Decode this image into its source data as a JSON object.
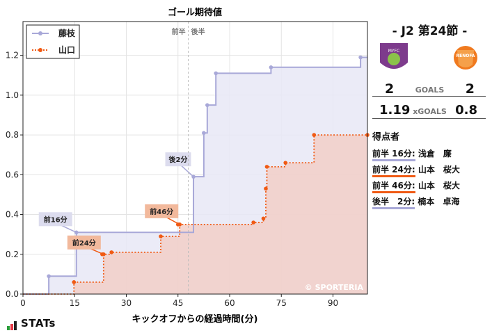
{
  "chart_data": {
    "type": "line",
    "step": true,
    "title": "ゴール期待値",
    "xlabel": "キックオフからの経過時間(分)",
    "ylabel": "",
    "xlim": [
      0,
      100
    ],
    "ylim": [
      0,
      1.37
    ],
    "xticks": [
      0,
      15,
      30,
      45,
      60,
      75,
      90
    ],
    "yticks": [
      0.0,
      0.2,
      0.4,
      0.6,
      0.8,
      1.0,
      1.2
    ],
    "half_divider": 48,
    "half_labels": [
      "前半",
      "後半"
    ],
    "legend_position": "top-left",
    "watermark": "© SPORTERIA",
    "series": [
      {
        "name": "藤枝",
        "color": "#a8a8d8",
        "fill": "#e8e8f6",
        "x": [
          0,
          7.5,
          15.5,
          49.5,
          52.5,
          53.5,
          56,
          72,
          98,
          100
        ],
        "y": [
          0,
          0.09,
          0.31,
          0.59,
          0.81,
          0.95,
          1.11,
          1.14,
          1.19,
          1.19
        ],
        "markers_x": [
          7.5,
          15.5,
          49.5,
          52.5,
          53.5,
          56,
          72,
          98
        ],
        "markers_y": [
          0.09,
          0.31,
          0.59,
          0.81,
          0.95,
          1.11,
          1.14,
          1.19
        ]
      },
      {
        "name": "山口",
        "color": "#f05a14",
        "fill": "#f2cdc4",
        "x": [
          0,
          14.8,
          23.4,
          25.7,
          40.0,
          45.5,
          46.5,
          66.9,
          69.8,
          70.5,
          70.8,
          76.2,
          84.5,
          100
        ],
        "y": [
          0,
          0.06,
          0.2,
          0.21,
          0.29,
          0.35,
          0.35,
          0.36,
          0.38,
          0.53,
          0.64,
          0.66,
          0.8,
          0.8
        ],
        "markers_x": [
          14.8,
          23.0,
          23.4,
          25.7,
          40.0,
          45.0,
          45.5,
          66.9,
          69.8,
          70.5,
          70.8,
          76.2,
          84.5,
          100
        ],
        "markers_y": [
          0.06,
          0.2,
          0.2,
          0.21,
          0.29,
          0.35,
          0.35,
          0.36,
          0.38,
          0.53,
          0.64,
          0.66,
          0.8,
          0.8
        ]
      }
    ],
    "goal_annotations": [
      {
        "label": "前16分",
        "team": "藤枝",
        "x": 15.5,
        "y": 0.31
      },
      {
        "label": "前24分",
        "team": "山口",
        "x": 23.4,
        "y": 0.2
      },
      {
        "label": "前46分",
        "team": "山口",
        "x": 45.5,
        "y": 0.35
      },
      {
        "label": "後2分",
        "team": "藤枝",
        "x": 49.5,
        "y": 0.59
      }
    ]
  },
  "match": {
    "title": "- J2 第24節 -",
    "home_team_badge_text": "FUJIEDA MYFC",
    "away_team_badge_text": "RENOFA",
    "home_goals": "2",
    "away_goals": "2",
    "goals_label": "GOALS",
    "home_xg": "1.19",
    "away_xg": "0.8",
    "xg_label": "xGOALS"
  },
  "scorers": {
    "title": "得点者",
    "items": [
      {
        "time": "前半 16分:",
        "name": "浅倉　廉",
        "color": "#a8a8d8"
      },
      {
        "time": "前半 24分:",
        "name": "山本　桜大",
        "color": "#f05a14"
      },
      {
        "time": "前半 46分:",
        "name": "山本　桜大",
        "color": "#f05a14"
      },
      {
        "time": "後半　2分:",
        "name": "楠本　卓海",
        "color": "#a8a8d8"
      }
    ]
  },
  "branding": {
    "logo_text": "STATs",
    "bar_colors": [
      "#2a9d3a",
      "#e63946",
      "#222222"
    ]
  }
}
